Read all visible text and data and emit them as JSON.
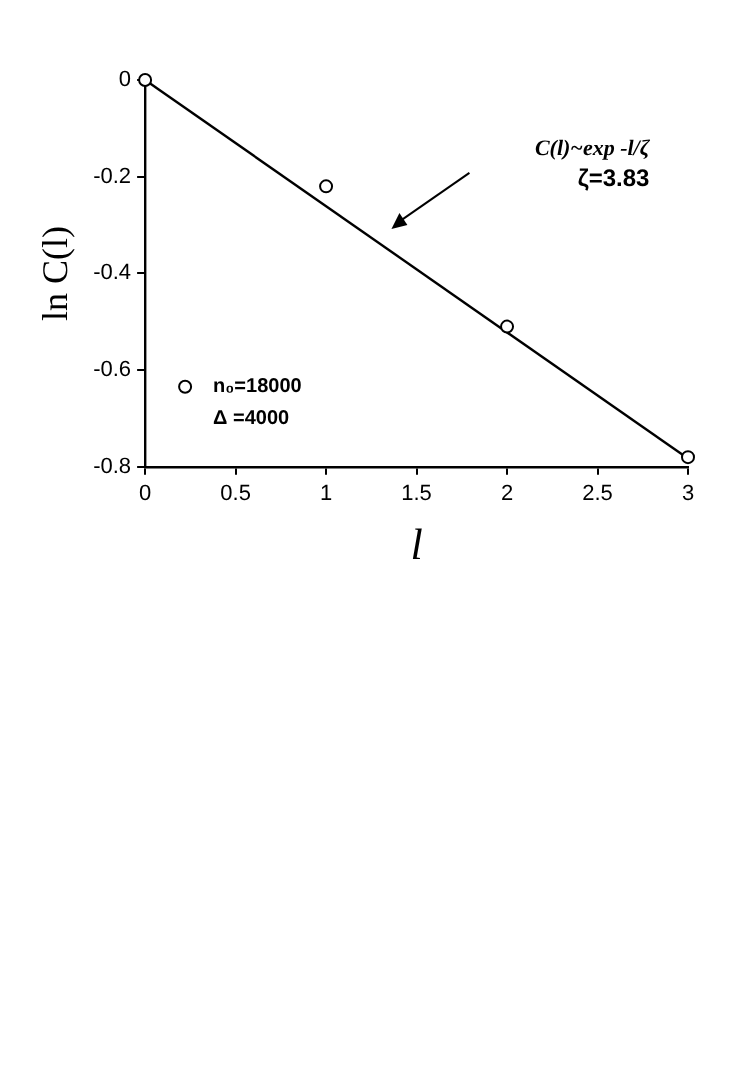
{
  "chart_data": {
    "type": "scatter",
    "xlabel": "l",
    "ylabel": "ln C(l)",
    "series": [
      {
        "name": "n₀=18000",
        "type": "scatter",
        "color": "#000000",
        "x": [
          0,
          1,
          2,
          3
        ],
        "values": [
          0,
          -0.22,
          -0.51,
          -0.78
        ],
        "marker": "circle"
      },
      {
        "type": "line",
        "color": "#000000",
        "x": [
          0,
          3
        ],
        "values": [
          0,
          -0.783
        ],
        "marker": "none",
        "line_style": "solid"
      }
    ],
    "xlim": [
      0,
      3
    ],
    "xticks": [
      0,
      0.5,
      1,
      1.5,
      2,
      2.5,
      3
    ],
    "ylim": [
      -0.8,
      0
    ],
    "yticks": [
      -0.8,
      -0.6,
      -0.4,
      -0.2,
      0
    ],
    "grid": false,
    "legend": "bottom left",
    "annotations": [
      "C(l)~exp -l/ζ\nζ=3.83",
      "Δ =4000"
    ]
  }
}
